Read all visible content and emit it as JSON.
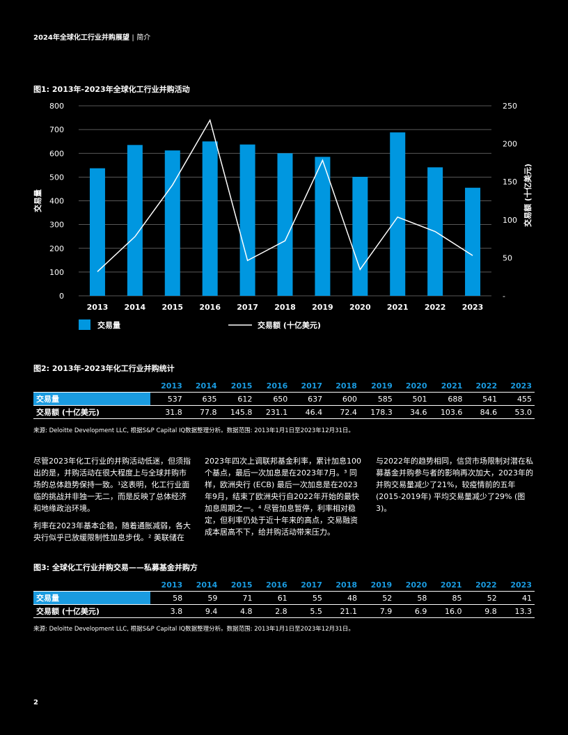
{
  "header": {
    "title": "2024年全球化工行业并购展望",
    "separator": "|",
    "section": "简介"
  },
  "figure1": {
    "title": "图1: 2013年-2023年全球化工行业并购活动"
  },
  "chart_data": {
    "type": "bar",
    "categories": [
      "2013",
      "2014",
      "2015",
      "2016",
      "2017",
      "2018",
      "2019",
      "2020",
      "2021",
      "2022",
      "2023"
    ],
    "series": [
      {
        "name": "交易量",
        "type": "bar",
        "axis": "left",
        "color": "#0097E0",
        "values": [
          537,
          635,
          612,
          650,
          637,
          600,
          585,
          501,
          688,
          541,
          455
        ]
      },
      {
        "name": "交易额 (十亿美元)",
        "type": "line",
        "axis": "right",
        "color": "#ffffff",
        "values": [
          31.8,
          77.8,
          145.8,
          231.1,
          46.4,
          72.4,
          178.3,
          34.6,
          103.6,
          84.6,
          53.0
        ]
      }
    ],
    "ylabel": "交易量",
    "y2label": "交易额 (十亿美元)",
    "ylim": [
      0,
      800
    ],
    "y2lim": [
      0,
      250
    ],
    "yticks": [
      "0",
      "100",
      "200",
      "300",
      "400",
      "500",
      "600",
      "700",
      "800"
    ],
    "y2ticks": [
      "-",
      "50",
      "100",
      "150",
      "200",
      "250"
    ],
    "grid": true,
    "legend": "bottom"
  },
  "figure2": {
    "title": "图2: 2013年-2023年化工行业并购统计",
    "years": [
      "2013",
      "2014",
      "2015",
      "2016",
      "2017",
      "2018",
      "2019",
      "2020",
      "2021",
      "2022",
      "2023"
    ],
    "rows": [
      {
        "label": "交易量",
        "values": [
          "537",
          "635",
          "612",
          "650",
          "637",
          "600",
          "585",
          "501",
          "688",
          "541",
          "455"
        ]
      },
      {
        "label": "交易额 (十亿美元)",
        "values": [
          "31.8",
          "77.8",
          "145.8",
          "231.1",
          "46.4",
          "72.4",
          "178.3",
          "34.6",
          "103.6",
          "84.6",
          "53.0"
        ]
      }
    ],
    "source": "来源: Deloitte Development LLC, 根据S&P Capital IQ数据整理分析。数据范围: 2013年1月1日至2023年12月31日。"
  },
  "body": {
    "col1_p1": "尽管2023年化工行业的并购活动低迷，但须指出的是，并购活动在很大程度上与全球并购市场的总体趋势保持一致。¹这表明，化工行业面临的挑战并非独一无二，而是反映了总体经济和地缘政治环境。",
    "col1_p2": "利率在2023年基本企稳，随着通胀减弱，各大央行似乎已放缓限制性加息步伐。² 美联储在",
    "col2_p1": "2023年四次上调联邦基金利率，累计加息100个基点，最后一次加息是在2023年7月。³ 同样，欧洲央行 (ECB) 最后一次加息是在2023年9月，结束了欧洲央行自2022年开始的最快加息周期之一。⁴ 尽管加息暂停，利率相对稳定，但利率仍处于近十年来的高点，交易融资成本居高不下，给并购活动带来压力。",
    "col3_p1": "与2022年的趋势相同，信贷市场限制对潜在私募基金并购参与者的影响再次加大，2023年的并购交易量减少了21%，较疫情前的五年 (2015-2019年) 平均交易量减少了29% (图3)。"
  },
  "figure3": {
    "title": "图3: 全球化工行业并购交易——私募基金并购方",
    "years": [
      "2013",
      "2014",
      "2015",
      "2016",
      "2017",
      "2018",
      "2019",
      "2020",
      "2021",
      "2022",
      "2023"
    ],
    "rows": [
      {
        "label": "交易量",
        "values": [
          "58",
          "59",
          "71",
          "61",
          "55",
          "48",
          "52",
          "58",
          "85",
          "52",
          "41"
        ]
      },
      {
        "label": "交易额 (十亿美元)",
        "values": [
          "3.8",
          "9.4",
          "4.8",
          "2.8",
          "5.5",
          "21.1",
          "7.9",
          "6.9",
          "16.0",
          "9.8",
          "13.3"
        ]
      }
    ],
    "source": "来源: Deloitte Development LLC, 根据S&P Capital IQ数据整理分析。数据范围: 2013年1月1日至2023年12月31日。"
  },
  "page_number": "2"
}
